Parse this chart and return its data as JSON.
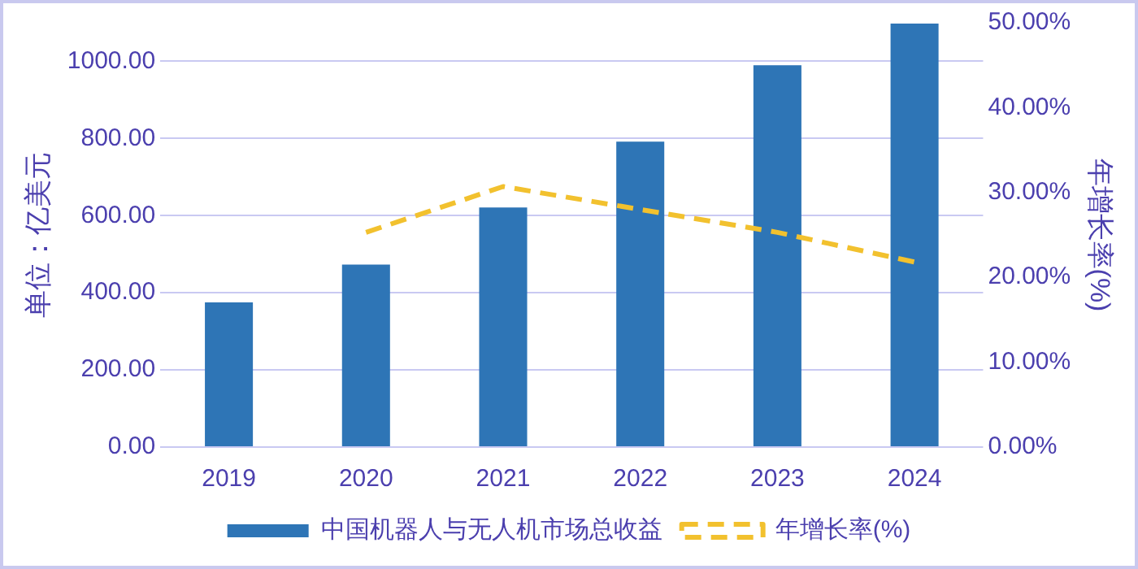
{
  "chart_data": {
    "type": "bar",
    "ylabel": "单位：亿美元",
    "y2label": "年增长率(%)",
    "categories": [
      "2019",
      "2020",
      "2021",
      "2022",
      "2023",
      "2024"
    ],
    "series": [
      {
        "name": "中国机器人与无人机市场总收益",
        "color": "#2e75b6",
        "values": [
          375,
          473,
          621,
          792,
          990,
          1098
        ]
      },
      {
        "name": "年增长率(%)",
        "type": "line",
        "axis": "y2",
        "color": "#f2c12e",
        "line_style": "dashed",
        "marker": "none",
        "values": [
          null,
          25.3,
          30.7,
          28.0,
          25.3,
          21.8
        ]
      }
    ],
    "ylim": [
      0,
      1100
    ],
    "yticks": [
      {
        "value": 0,
        "label": "0.00"
      },
      {
        "value": 200,
        "label": "200.00"
      },
      {
        "value": 400,
        "label": "400.00"
      },
      {
        "value": 600,
        "label": "600.00"
      },
      {
        "value": 800,
        "label": "800.00"
      },
      {
        "value": 1000,
        "label": "1000.00"
      }
    ],
    "y2lim": [
      0,
      50
    ],
    "y2ticks": [
      {
        "value": 0,
        "label": "0.00%"
      },
      {
        "value": 10,
        "label": "10.00%"
      },
      {
        "value": 20,
        "label": "20.00%"
      },
      {
        "value": 30,
        "label": "30.00%"
      },
      {
        "value": 40,
        "label": "40.00%"
      },
      {
        "value": 50,
        "label": "50.00%"
      }
    ],
    "grid": "y",
    "legend": "bottom"
  }
}
